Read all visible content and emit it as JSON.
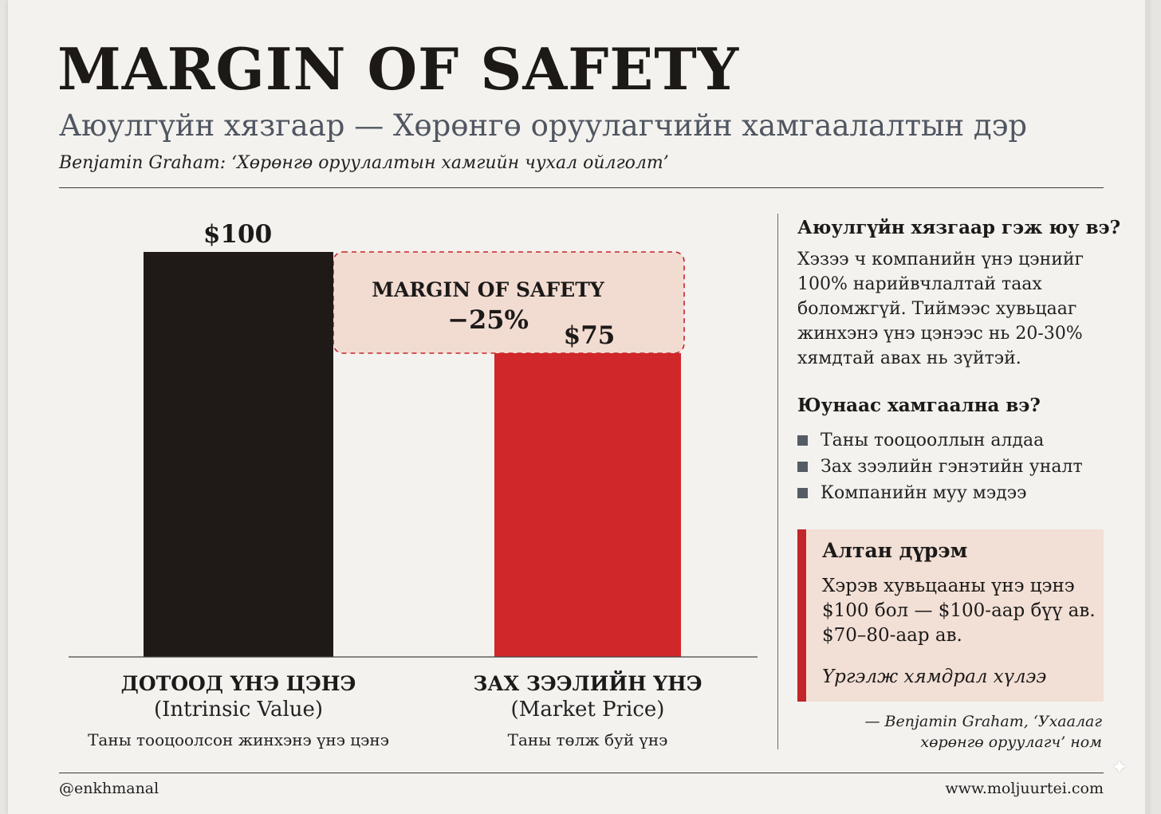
{
  "header": {
    "title": "MARGIN OF SAFETY",
    "subtitle": "Аюулгүйн хязгаар — Хөрөнгө оруулагчийн хамгаалалтын дэр",
    "quote": "Benjamin Graham: ‘Хөрөнгө оруулалтын хамгийн чухал ойлголт’"
  },
  "chart_data": {
    "type": "bar",
    "categories": [
      "ДОТООД ҮНЭ ЦЭНЭ",
      "ЗАХ ЗЭЭЛИЙН ҮНЭ"
    ],
    "category_subtitles": [
      "(Intrinsic Value)",
      "(Market Price)"
    ],
    "category_notes": [
      "Таны тооцоолсон жинхэнэ үнэ цэнэ",
      "Таны төлж буй үнэ"
    ],
    "values": [
      100,
      75
    ],
    "value_labels": [
      "$100",
      "$75"
    ],
    "colors": [
      "#1f1a17",
      "#d0272a"
    ],
    "ylim": [
      0,
      100
    ],
    "grid": false,
    "annotation": {
      "line1": "MARGIN OF SAFETY",
      "line2": "−25%",
      "from_value": 100,
      "to_value": 75,
      "color": "#c2262a",
      "fill": "#f2dcd2"
    }
  },
  "sidebar": {
    "what_heading": "Аюулгүйн хязгаар гэж юу вэ?",
    "what_text": "Хэзээ ч компанийн үнэ цэнийг 100% нарийвчлалтай таах боломжгүй. Тиймээс хувьцааг жинхэнэ үнэ цэнээс нь 20-30% хямдтай авах нь зүйтэй.",
    "why_heading": "Юунаас хамгаална вэ?",
    "bullets": [
      "Таны тооцооллын алдаа",
      "Зах зээлийн гэнэтийн уналт",
      "Компанийн муу мэдээ"
    ],
    "golden_rule": {
      "title": "Алтан дүрэм",
      "text": "Хэрэв хувьцааны үнэ цэнэ $100 бол — $100-аар бүү ав. $70–80-аар ав.",
      "note": "Үргэлж хямдрал хүлээ"
    },
    "citation_line1": "— Benjamin Graham, ‘Ухаалаг",
    "citation_line2": "хөрөнгө оруулагч’ ном"
  },
  "footer": {
    "handle": "@enkhmanal",
    "website": "www.moljuurtei.com"
  }
}
